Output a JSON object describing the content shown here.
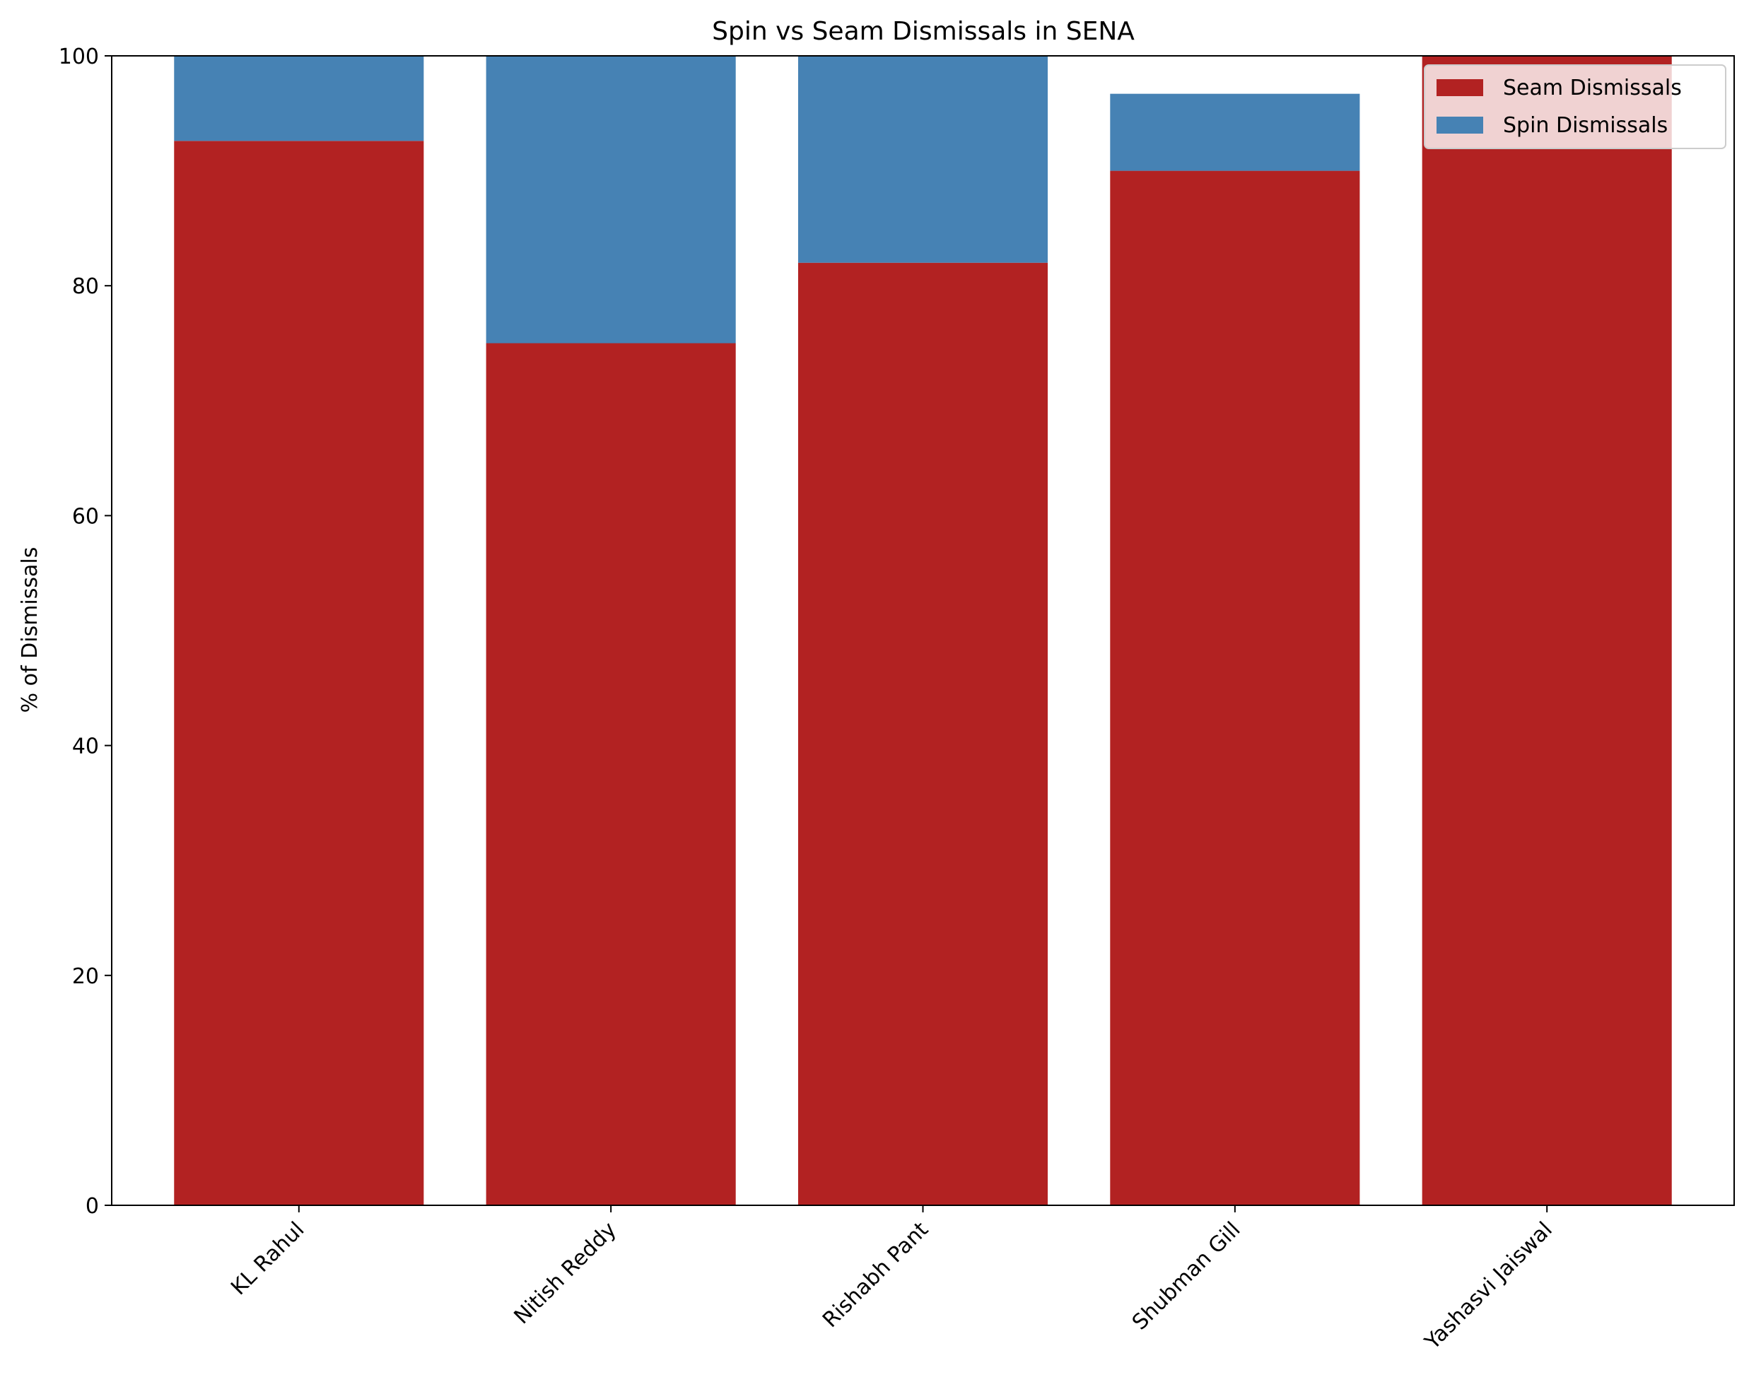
{
  "chart_data": {
    "type": "bar",
    "stacked": true,
    "title": "Spin vs Seam Dismissals in SENA",
    "xlabel": "",
    "ylabel": "% of Dismissals",
    "categories": [
      "KL Rahul",
      "Nitish Reddy",
      "Rishabh Pant",
      "Shubman Gill",
      "Yashasvi Jaiswal"
    ],
    "series": [
      {
        "name": "Seam Dismissals",
        "color": "#b22222",
        "values": [
          92.6,
          75.0,
          82.0,
          90.0,
          100.0
        ]
      },
      {
        "name": "Spin Dismissals",
        "color": "#4682b4",
        "values": [
          7.4,
          25.0,
          18.0,
          6.7,
          0.0
        ]
      }
    ],
    "ylim": [
      0,
      100
    ],
    "yticks": [
      0,
      20,
      40,
      60,
      80,
      100
    ],
    "grid": false,
    "legend_position": "top-right"
  }
}
